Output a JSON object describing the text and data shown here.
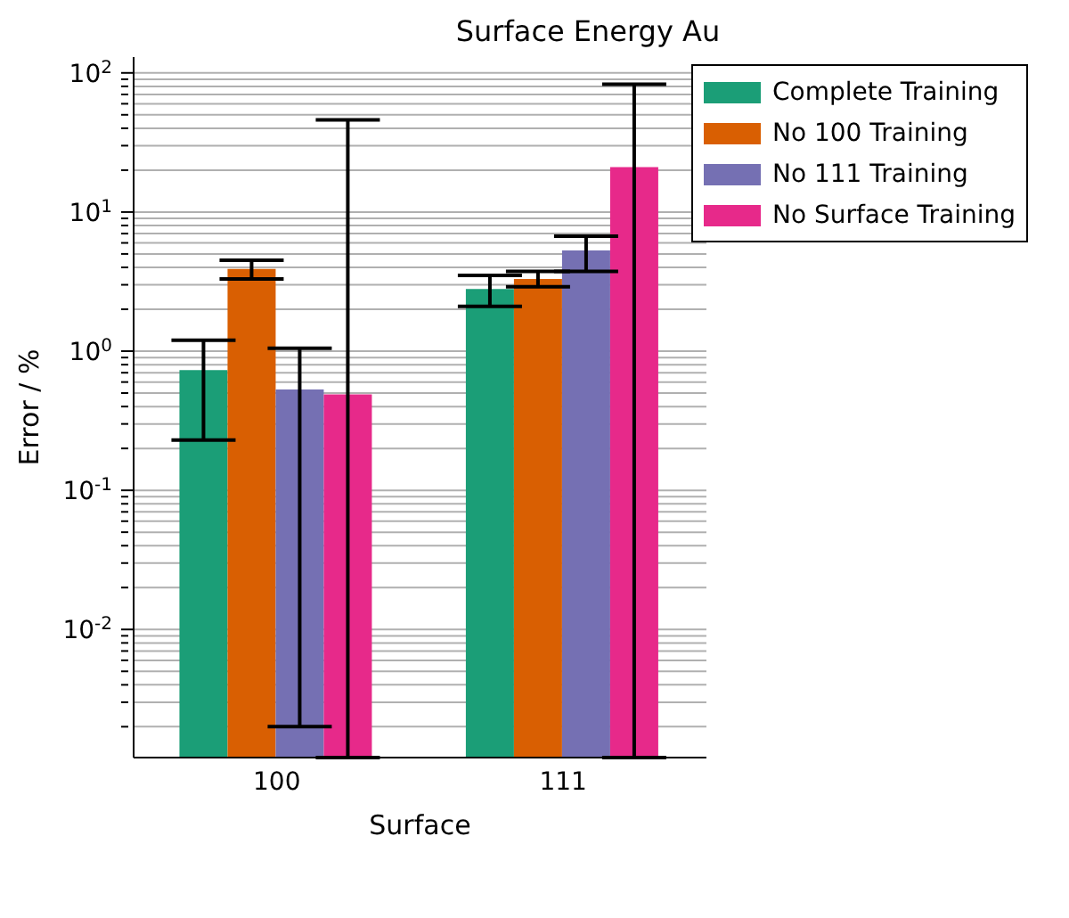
{
  "chart_data": {
    "type": "bar",
    "title": "Surface Energy Au",
    "xlabel": "Surface",
    "ylabel": "Error / %",
    "categories": [
      "100",
      "111"
    ],
    "series": [
      {
        "name": "Complete Training",
        "color": "#1b9e77",
        "values": [
          0.73,
          2.8
        ],
        "errors": [
          [
            0.23,
            1.2
          ],
          [
            2.1,
            3.5
          ]
        ]
      },
      {
        "name": "No 100 Training",
        "color": "#d95f02",
        "values": [
          3.9,
          3.3
        ],
        "errors": [
          [
            3.3,
            4.5
          ],
          [
            2.9,
            3.75
          ]
        ]
      },
      {
        "name": "No 111 Training",
        "color": "#7570b3",
        "values": [
          0.53,
          5.3
        ],
        "errors": [
          [
            0.002,
            1.05
          ],
          [
            3.75,
            6.7
          ]
        ]
      },
      {
        "name": "No Surface Training",
        "color": "#e7298a",
        "values": [
          0.49,
          21
        ],
        "errors": [
          [
            0.0012,
            46
          ],
          [
            0.0012,
            83
          ]
        ]
      }
    ],
    "log": "y",
    "ylim": [
      0.0012,
      130
    ],
    "yticks": [
      {
        "value": 0.002,
        "label": null
      },
      {
        "value": 0.003,
        "label": null
      },
      {
        "value": 0.004,
        "label": null
      },
      {
        "value": 0.005,
        "label": null
      },
      {
        "value": 0.006,
        "label": null
      },
      {
        "value": 0.007,
        "label": null
      },
      {
        "value": 0.008,
        "label": null
      },
      {
        "value": 0.009,
        "label": null
      },
      {
        "value": 0.01,
        "label": "10$^{-2}$"
      },
      {
        "value": 0.02,
        "label": null
      },
      {
        "value": 0.03,
        "label": null
      },
      {
        "value": 0.04,
        "label": null
      },
      {
        "value": 0.05,
        "label": null
      },
      {
        "value": 0.06,
        "label": null
      },
      {
        "value": 0.07,
        "label": null
      },
      {
        "value": 0.08,
        "label": null
      },
      {
        "value": 0.09,
        "label": null
      },
      {
        "value": 0.1,
        "label": "10$^{-1}$"
      },
      {
        "value": 0.2,
        "label": null
      },
      {
        "value": 0.3,
        "label": null
      },
      {
        "value": 0.4,
        "label": null
      },
      {
        "value": 0.5,
        "label": null
      },
      {
        "value": 0.6,
        "label": null
      },
      {
        "value": 0.7,
        "label": null
      },
      {
        "value": 0.8,
        "label": null
      },
      {
        "value": 0.9,
        "label": null
      },
      {
        "value": 1,
        "label": "10$^{0}$"
      },
      {
        "value": 2,
        "label": null
      },
      {
        "value": 3,
        "label": null
      },
      {
        "value": 4,
        "label": null
      },
      {
        "value": 5,
        "label": null
      },
      {
        "value": 6,
        "label": null
      },
      {
        "value": 7,
        "label": null
      },
      {
        "value": 8,
        "label": null
      },
      {
        "value": 9,
        "label": null
      },
      {
        "value": 10,
        "label": "10$^{1}$"
      },
      {
        "value": 20,
        "label": null
      },
      {
        "value": 30,
        "label": null
      },
      {
        "value": 40,
        "label": null
      },
      {
        "value": 50,
        "label": null
      },
      {
        "value": 60,
        "label": null
      },
      {
        "value": 70,
        "label": null
      },
      {
        "value": 80,
        "label": null
      },
      {
        "value": 90,
        "label": null
      },
      {
        "value": 100,
        "label": "10$^{2}$"
      }
    ],
    "grid": "y",
    "legend": "top right"
  }
}
